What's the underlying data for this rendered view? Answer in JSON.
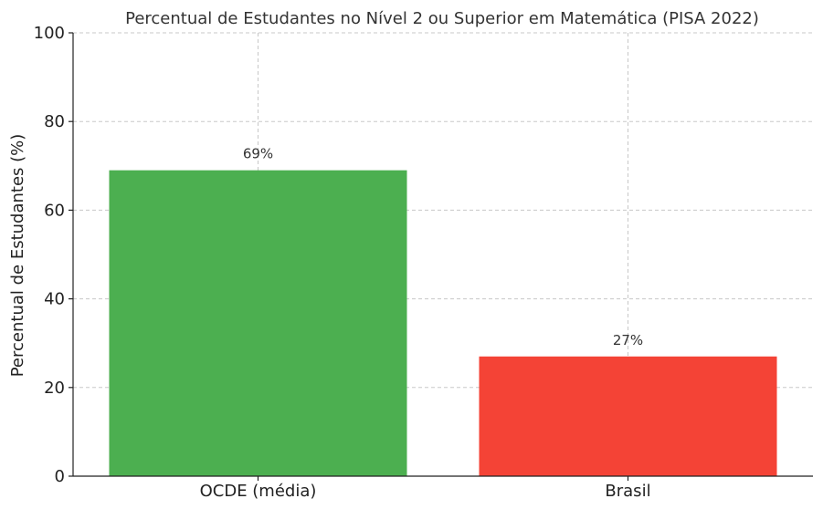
{
  "chart_data": {
    "type": "bar",
    "title": "Percentual de Estudantes no Nível 2 ou Superior em Matemática (PISA 2022)",
    "xlabel": "",
    "ylabel": "Percentual de Estudantes (%)",
    "categories": [
      "OCDE (média)",
      "Brasil"
    ],
    "values": [
      69,
      27
    ],
    "data_labels": [
      "69%",
      "27%"
    ],
    "colors": [
      "#4caf50",
      "#f44336"
    ],
    "ylim": [
      0,
      100
    ],
    "yticks": [
      0,
      20,
      40,
      60,
      80,
      100
    ],
    "grid": true,
    "legend": "none"
  }
}
